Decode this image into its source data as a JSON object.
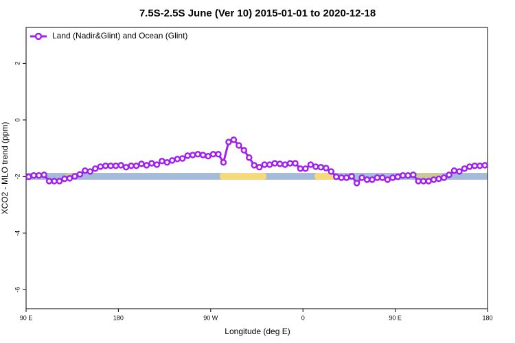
{
  "chart_data": {
    "type": "line",
    "title": "7.5S-2.5S June (Ver 10)   2015-01-01 to 2020-12-18",
    "x_label": "Longitude (deg E)",
    "y_label": "XCO2 - MLO trend (ppm)",
    "xlim": [
      90,
      540
    ],
    "xticks": [
      {
        "value": 90,
        "label": "90 E"
      },
      {
        "value": 180,
        "label": "180"
      },
      {
        "value": 270,
        "label": "90 W"
      },
      {
        "value": 360,
        "label": "0"
      },
      {
        "value": 450,
        "label": "90 E"
      },
      {
        "value": 540,
        "label": "180"
      }
    ],
    "ylim": [
      -6.67,
      3.27
    ],
    "yticks": [
      2,
      0,
      -2,
      -4,
      -6
    ],
    "legend": "top-left",
    "x": [
      92.5,
      97.5,
      102.5,
      107.5,
      112.5,
      117.5,
      122.5,
      127.5,
      132.5,
      137.5,
      142.5,
      147.5,
      152.5,
      157.5,
      162.5,
      167.5,
      172.5,
      177.5,
      182.5,
      187.5,
      192.5,
      197.5,
      202.5,
      207.5,
      212.5,
      217.5,
      222.5,
      227.5,
      232.5,
      237.5,
      242.5,
      247.5,
      252.5,
      257.5,
      262.5,
      267.5,
      272.5,
      277.5,
      282.5,
      287.5,
      292.5,
      297.5,
      302.5,
      307.5,
      312.5,
      317.5,
      322.5,
      327.5,
      332.5,
      337.5,
      342.5,
      347.5,
      352.5,
      357.5,
      362.5,
      367.5,
      372.5,
      377.5,
      382.5,
      387.5,
      392.5,
      397.5,
      402.5,
      407.5,
      412.5,
      417.5,
      422.5,
      427.5,
      432.5,
      437.5,
      442.5,
      447.5,
      452.5,
      457.5,
      462.5,
      467.5,
      472.5,
      477.5,
      482.5,
      487.5,
      492.5,
      497.5,
      502.5,
      507.5,
      512.5,
      517.5,
      522.5,
      527.5,
      532.5,
      537.5
    ],
    "series": [
      {
        "name": "Land (Nadir&Glint) and Ocean (Glint)",
        "color": "#a020f0",
        "values": [
          -2.01,
          -1.96,
          -1.96,
          -1.94,
          -2.16,
          -2.16,
          -2.16,
          -2.08,
          -2.06,
          -1.99,
          -1.92,
          -1.79,
          -1.82,
          -1.72,
          -1.65,
          -1.62,
          -1.62,
          -1.62,
          -1.6,
          -1.67,
          -1.62,
          -1.62,
          -1.55,
          -1.6,
          -1.53,
          -1.58,
          -1.45,
          -1.5,
          -1.43,
          -1.38,
          -1.36,
          -1.26,
          -1.24,
          -1.21,
          -1.24,
          -1.28,
          -1.21,
          -1.21,
          -1.5,
          -0.78,
          -0.7,
          -0.9,
          -1.07,
          -1.33,
          -1.6,
          -1.67,
          -1.58,
          -1.58,
          -1.53,
          -1.55,
          -1.58,
          -1.53,
          -1.53,
          -1.72,
          -1.72,
          -1.58,
          -1.65,
          -1.67,
          -1.7,
          -1.82,
          -2.01,
          -2.04,
          -2.04,
          -1.99,
          -2.23,
          -2.04,
          -2.11,
          -2.11,
          -2.04,
          -2.04,
          -2.11,
          -2.04,
          -2.01,
          -1.96,
          -1.96,
          -1.94,
          -2.16,
          -2.16,
          -2.16,
          -2.11,
          -2.08,
          -2.04,
          -1.94,
          -1.79,
          -1.82,
          -1.72,
          -1.65,
          -1.62,
          -1.62,
          -1.6
        ]
      }
    ]
  }
}
